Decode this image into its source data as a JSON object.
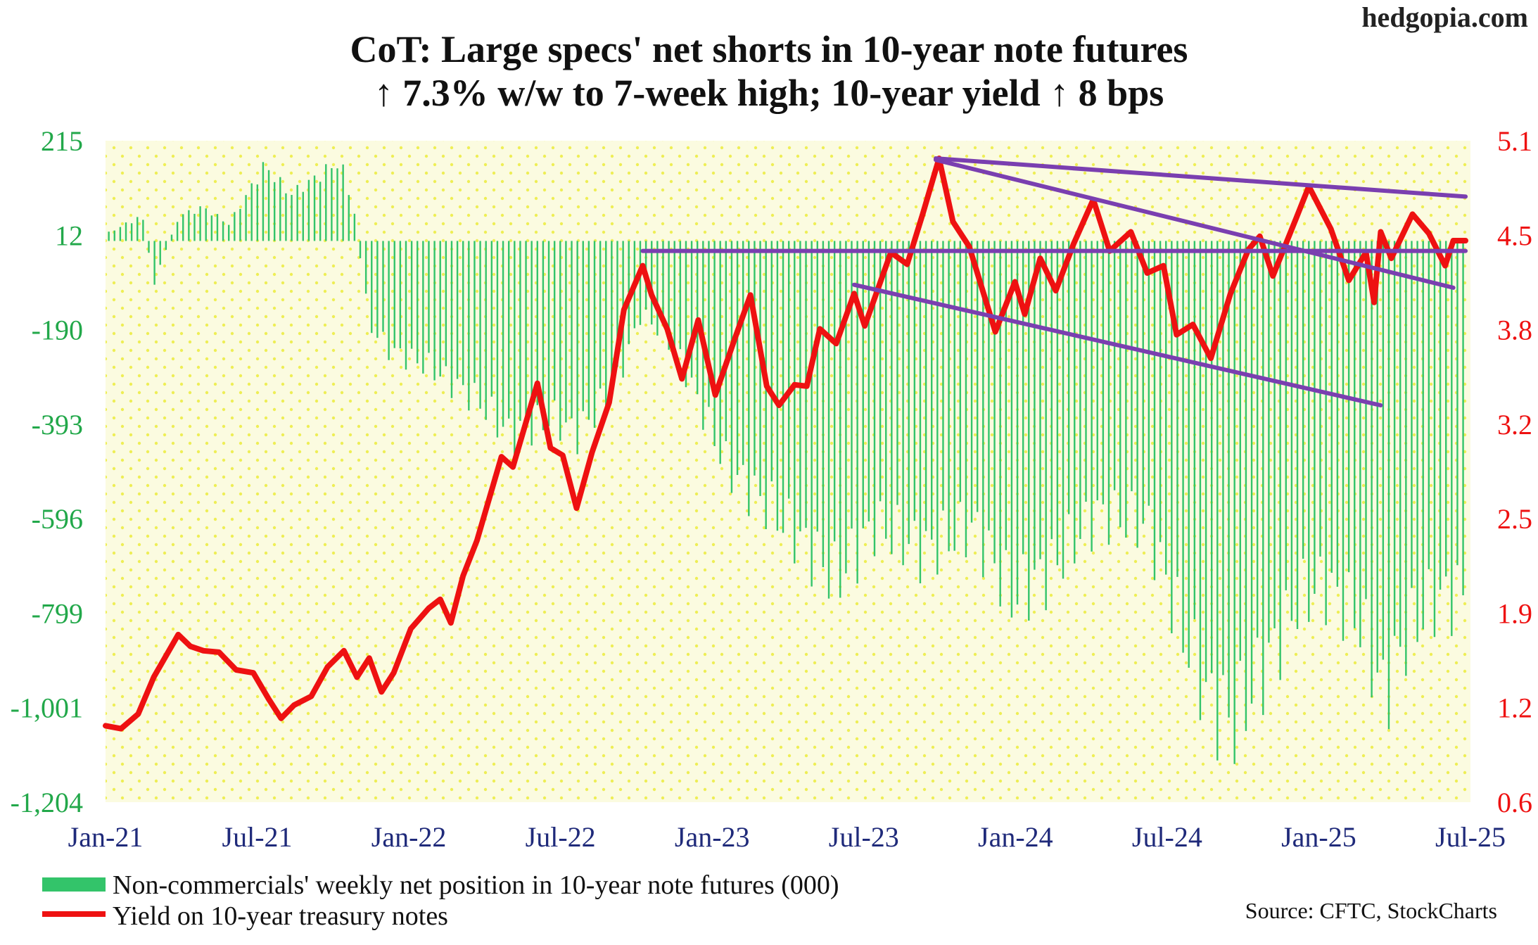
{
  "watermark": "hedgopia.com",
  "title_line1": "CoT: Large specs' net shorts in 10-year note futures",
  "title_line2": "↑ 7.3% w/w to 7-week high; 10-year yield ↑ 8 bps",
  "source": "Source: CFTC, StockCharts",
  "colors": {
    "bars": "#33c46a",
    "yield": "#ee1111",
    "trendlines": "#7a3fb0",
    "plot_background": "#fbfbe0",
    "dot_pattern": "#eeee55",
    "left_axis": "#22a84a",
    "right_axis": "#ee1111",
    "x_axis": "#1f2a7a"
  },
  "chart_data": {
    "type": "bar",
    "grid": false,
    "legend_position": "bottom-left",
    "x_ticks": [
      "Jan-21",
      "Jul-21",
      "Jan-22",
      "Jul-22",
      "Jan-23",
      "Jul-23",
      "Jan-24",
      "Jul-24",
      "Jan-25",
      "Jul-25"
    ],
    "x_range": [
      "2021-01-01",
      "2025-07-31"
    ],
    "left_axis": {
      "ticks": [
        "215",
        "12",
        "-190",
        "-393",
        "-596",
        "-799",
        "-1,001",
        "-1,204"
      ],
      "ylim": [
        -1204,
        215
      ]
    },
    "right_axis": {
      "ticks": [
        "5.1",
        "4.5",
        "3.8",
        "3.2",
        "2.5",
        "1.9",
        "1.2",
        "0.6"
      ],
      "ylim": [
        0.6,
        5.1
      ]
    },
    "series": [
      {
        "name": "Non-commercials' weekly net position in 10-year note futures (000)",
        "type": "bar",
        "axis": "left",
        "knots": [
          [
            "2021-01-05",
            20
          ],
          [
            "2021-02-15",
            60
          ],
          [
            "2021-03-01",
            -100
          ],
          [
            "2021-04-01",
            60
          ],
          [
            "2021-05-01",
            80
          ],
          [
            "2021-06-01",
            40
          ],
          [
            "2021-07-15",
            180
          ],
          [
            "2021-08-15",
            110
          ],
          [
            "2021-09-15",
            150
          ],
          [
            "2021-10-15",
            190
          ],
          [
            "2021-11-01",
            80
          ],
          [
            "2021-11-20",
            -200
          ],
          [
            "2021-12-15",
            -260
          ],
          [
            "2022-02-01",
            -300
          ],
          [
            "2022-04-01",
            -380
          ],
          [
            "2022-05-15",
            -470
          ],
          [
            "2022-07-01",
            -420
          ],
          [
            "2022-08-01",
            -460
          ],
          [
            "2022-09-15",
            -360
          ],
          [
            "2022-10-20",
            -170
          ],
          [
            "2022-12-01",
            -260
          ],
          [
            "2023-02-01",
            -540
          ],
          [
            "2023-04-01",
            -650
          ],
          [
            "2023-05-15",
            -740
          ],
          [
            "2023-06-15",
            -810
          ],
          [
            "2023-08-01",
            -680
          ],
          [
            "2023-10-01",
            -740
          ],
          [
            "2023-12-01",
            -680
          ],
          [
            "2024-01-15",
            -850
          ],
          [
            "2024-03-01",
            -790
          ],
          [
            "2024-05-01",
            -650
          ],
          [
            "2024-07-01",
            -680
          ],
          [
            "2024-08-15",
            -950
          ],
          [
            "2024-09-15",
            -1100
          ],
          [
            "2024-10-15",
            -1150
          ],
          [
            "2024-12-01",
            -980
          ],
          [
            "2025-01-01",
            -860
          ],
          [
            "2025-02-01",
            -820
          ],
          [
            "2025-03-15",
            -900
          ],
          [
            "2025-04-15",
            -1080
          ],
          [
            "2025-05-15",
            -940
          ],
          [
            "2025-06-15",
            -860
          ],
          [
            "2025-07-25",
            -840
          ]
        ]
      },
      {
        "name": "Yield on 10-year treasury notes",
        "type": "line",
        "axis": "right",
        "points": [
          [
            "2021-01-01",
            1.12
          ],
          [
            "2021-01-20",
            1.1
          ],
          [
            "2021-02-10",
            1.2
          ],
          [
            "2021-03-01",
            1.45
          ],
          [
            "2021-03-31",
            1.74
          ],
          [
            "2021-04-15",
            1.66
          ],
          [
            "2021-05-01",
            1.63
          ],
          [
            "2021-05-20",
            1.62
          ],
          [
            "2021-06-10",
            1.5
          ],
          [
            "2021-07-01",
            1.48
          ],
          [
            "2021-07-20",
            1.3
          ],
          [
            "2021-08-04",
            1.17
          ],
          [
            "2021-08-20",
            1.26
          ],
          [
            "2021-09-10",
            1.32
          ],
          [
            "2021-09-30",
            1.52
          ],
          [
            "2021-10-20",
            1.63
          ],
          [
            "2021-11-05",
            1.45
          ],
          [
            "2021-11-20",
            1.58
          ],
          [
            "2021-12-05",
            1.35
          ],
          [
            "2021-12-20",
            1.48
          ],
          [
            "2022-01-10",
            1.78
          ],
          [
            "2022-02-01",
            1.92
          ],
          [
            "2022-02-15",
            1.98
          ],
          [
            "2022-02-28",
            1.82
          ],
          [
            "2022-03-15",
            2.14
          ],
          [
            "2022-04-01",
            2.38
          ],
          [
            "2022-05-01",
            2.95
          ],
          [
            "2022-05-15",
            2.88
          ],
          [
            "2022-06-14",
            3.45
          ],
          [
            "2022-06-30",
            3.01
          ],
          [
            "2022-07-15",
            2.96
          ],
          [
            "2022-08-01",
            2.6
          ],
          [
            "2022-08-20",
            2.98
          ],
          [
            "2022-09-10",
            3.32
          ],
          [
            "2022-09-28",
            3.95
          ],
          [
            "2022-10-21",
            4.25
          ],
          [
            "2022-11-01",
            4.05
          ],
          [
            "2022-11-20",
            3.82
          ],
          [
            "2022-12-08",
            3.48
          ],
          [
            "2022-12-28",
            3.88
          ],
          [
            "2023-01-18",
            3.37
          ],
          [
            "2023-02-10",
            3.74
          ],
          [
            "2023-03-02",
            4.05
          ],
          [
            "2023-03-22",
            3.43
          ],
          [
            "2023-04-06",
            3.3
          ],
          [
            "2023-04-25",
            3.44
          ],
          [
            "2023-05-10",
            3.43
          ],
          [
            "2023-05-26",
            3.82
          ],
          [
            "2023-06-15",
            3.72
          ],
          [
            "2023-07-07",
            4.06
          ],
          [
            "2023-07-20",
            3.84
          ],
          [
            "2023-08-21",
            4.34
          ],
          [
            "2023-09-10",
            4.26
          ],
          [
            "2023-09-29",
            4.6
          ],
          [
            "2023-10-19",
            4.98
          ],
          [
            "2023-11-05",
            4.55
          ],
          [
            "2023-11-25",
            4.38
          ],
          [
            "2023-12-27",
            3.8
          ],
          [
            "2024-01-20",
            4.14
          ],
          [
            "2024-02-01",
            3.92
          ],
          [
            "2024-02-20",
            4.3
          ],
          [
            "2024-03-10",
            4.08
          ],
          [
            "2024-04-01",
            4.4
          ],
          [
            "2024-04-25",
            4.7
          ],
          [
            "2024-05-15",
            4.35
          ],
          [
            "2024-06-10",
            4.48
          ],
          [
            "2024-06-30",
            4.2
          ],
          [
            "2024-07-20",
            4.25
          ],
          [
            "2024-08-05",
            3.78
          ],
          [
            "2024-08-25",
            3.85
          ],
          [
            "2024-09-16",
            3.62
          ],
          [
            "2024-10-10",
            4.06
          ],
          [
            "2024-11-01",
            4.36
          ],
          [
            "2024-11-15",
            4.45
          ],
          [
            "2024-12-01",
            4.18
          ],
          [
            "2024-12-30",
            4.58
          ],
          [
            "2025-01-14",
            4.79
          ],
          [
            "2025-02-10",
            4.5
          ],
          [
            "2025-03-04",
            4.15
          ],
          [
            "2025-03-25",
            4.34
          ],
          [
            "2025-04-04",
            4.0
          ],
          [
            "2025-04-12",
            4.48
          ],
          [
            "2025-04-25",
            4.3
          ],
          [
            "2025-05-21",
            4.6
          ],
          [
            "2025-06-10",
            4.47
          ],
          [
            "2025-06-30",
            4.25
          ],
          [
            "2025-07-10",
            4.42
          ],
          [
            "2025-07-25",
            4.42
          ]
        ]
      }
    ],
    "annotations": [
      {
        "type": "trendline",
        "from": [
          "2023-10-15",
          4.98
        ],
        "to": [
          "2025-07-25",
          4.72
        ]
      },
      {
        "type": "trendline",
        "from": [
          "2023-10-15",
          4.97
        ],
        "to": [
          "2025-07-10",
          4.1
        ]
      },
      {
        "type": "trendline",
        "from": [
          "2022-10-21",
          4.35
        ],
        "to": [
          "2025-07-25",
          4.35
        ]
      },
      {
        "type": "trendline",
        "from": [
          "2023-07-07",
          4.12
        ],
        "to": [
          "2025-04-12",
          3.3
        ]
      }
    ]
  }
}
